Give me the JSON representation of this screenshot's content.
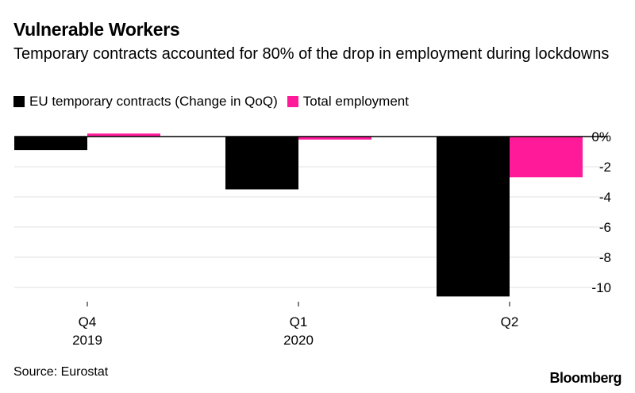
{
  "header": {
    "title": "Vulnerable Workers",
    "subtitle": "Temporary contracts accounted for 80% of the drop in employment during lockdowns"
  },
  "legend": [
    {
      "label": "EU temporary contracts (Change in QoQ)",
      "color": "#000000"
    },
    {
      "label": "Total employment",
      "color": "#ff1a9a"
    }
  ],
  "chart_data": {
    "type": "bar",
    "title": "Vulnerable Workers",
    "subtitle": "Temporary contracts accounted for 80% of the drop in employment during lockdowns",
    "categories": [
      {
        "quarter": "Q4",
        "year": "2019"
      },
      {
        "quarter": "Q1",
        "year": "2020"
      },
      {
        "quarter": "Q2",
        "year": ""
      }
    ],
    "series": [
      {
        "name": "EU temporary contracts (Change in QoQ)",
        "color": "#000000",
        "values": [
          -0.9,
          -3.5,
          -10.6
        ]
      },
      {
        "name": "Total employment",
        "color": "#ff1a9a",
        "values": [
          0.2,
          -0.2,
          -2.7
        ]
      }
    ],
    "y_ticks": [
      {
        "value": 0,
        "label": "0%"
      },
      {
        "value": -2,
        "label": "-2"
      },
      {
        "value": -4,
        "label": "-4"
      },
      {
        "value": -6,
        "label": "-6"
      },
      {
        "value": -8,
        "label": "-8"
      },
      {
        "value": -10,
        "label": "-10"
      }
    ],
    "ylim": [
      -10.6,
      0.2
    ],
    "grid": true,
    "axis_position": "right"
  },
  "footer": {
    "source": "Source: Eurostat",
    "brand": "Bloomberg"
  }
}
